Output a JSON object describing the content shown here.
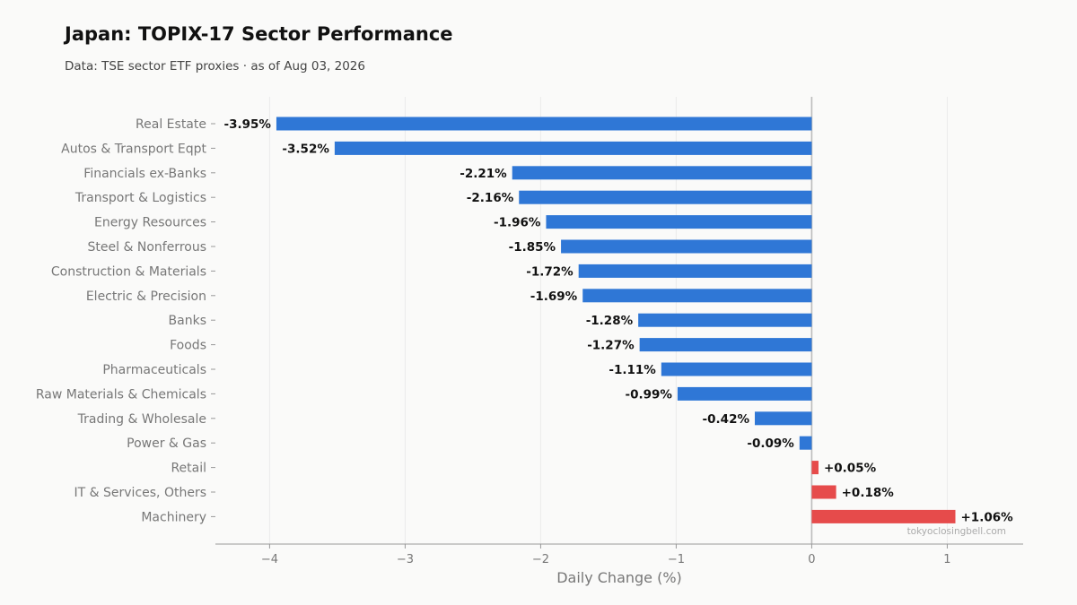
{
  "title": "Japan: TOPIX-17 Sector Performance",
  "subtitle": "Data: TSE sector ETF proxies · as of Aug 03, 2026",
  "watermark": "tokyoclosingbell.com",
  "colors": {
    "negative": "#2f77d6",
    "positive": "#e64b4b",
    "grid": "#ebebeb",
    "zero_line": "#bbbbbb",
    "axis": "#999999",
    "background": "#fafaf9"
  },
  "chart_data": {
    "type": "bar",
    "orientation": "horizontal",
    "title": "Japan: TOPIX-17 Sector Performance",
    "xlabel": "Daily Change (%)",
    "ylabel": "",
    "xlim": [
      -4.4,
      1.56
    ],
    "xticks": [
      -4,
      -3,
      -2,
      -1,
      0,
      1
    ],
    "xtick_labels": [
      "−4",
      "−3",
      "−2",
      "−1",
      "0",
      "1"
    ],
    "grid": "vertical",
    "categories": [
      "Real Estate",
      "Autos & Transport Eqpt",
      "Financials ex-Banks",
      "Transport & Logistics",
      "Energy Resources",
      "Steel & Nonferrous",
      "Construction & Materials",
      "Electric & Precision",
      "Banks",
      "Foods",
      "Pharmaceuticals",
      "Raw Materials & Chemicals",
      "Trading & Wholesale",
      "Power & Gas",
      "Retail",
      "IT & Services, Others",
      "Machinery"
    ],
    "values": [
      -3.95,
      -3.52,
      -2.21,
      -2.16,
      -1.96,
      -1.85,
      -1.72,
      -1.69,
      -1.28,
      -1.27,
      -1.11,
      -0.99,
      -0.42,
      -0.09,
      0.05,
      0.18,
      1.06
    ],
    "value_labels": [
      "-3.95%",
      "-3.52%",
      "-2.21%",
      "-2.16%",
      "-1.96%",
      "-1.85%",
      "-1.72%",
      "-1.69%",
      "-1.28%",
      "-1.27%",
      "-1.11%",
      "-0.99%",
      "-0.42%",
      "-0.09%",
      "+0.05%",
      "+0.18%",
      "+1.06%"
    ]
  }
}
